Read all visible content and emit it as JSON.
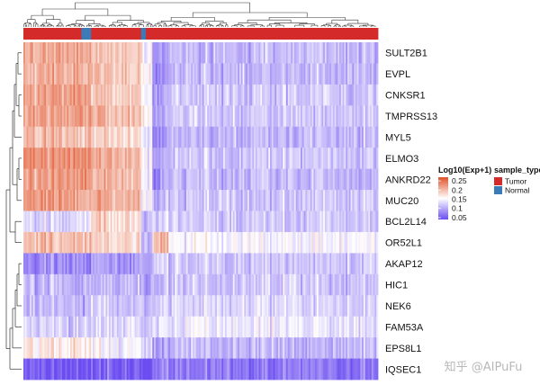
{
  "chart_data": {
    "type": "heatmap",
    "title": "",
    "genes": [
      "SULT2B1",
      "EVPL",
      "CNKSR1",
      "TMPRSS13",
      "MYL5",
      "ELMO3",
      "ANKRD22",
      "MUC20",
      "BCL2L14",
      "OR52L1",
      "AKAP12",
      "HIC1",
      "NEK6",
      "FAM53A",
      "EPS8L1",
      "IQSEC1"
    ],
    "n_samples": 220,
    "color_legend": {
      "title": "Log10(Exp+1)",
      "ticks": [
        "0.25",
        "0.2",
        "0.15",
        "0.1",
        "0.05"
      ],
      "tick_values": [
        0.25,
        0.2,
        0.15,
        0.1,
        0.05
      ],
      "range": [
        0.04,
        0.27
      ],
      "colors": {
        "low": "#6a4cf0",
        "mid": "#ffffff",
        "high": "#e0532a"
      }
    },
    "annotation_legend": {
      "title": "sample_type",
      "entries": [
        {
          "label": "Tumor",
          "color": "#d42a2a"
        },
        {
          "label": "Normal",
          "color": "#3a7bb8"
        }
      ]
    },
    "sample_blocks": [
      {
        "fraction_start": 0.0,
        "fraction_end": 0.165,
        "profile": "high_upper",
        "sample_type": "Tumor"
      },
      {
        "fraction_start": 0.165,
        "fraction_end": 0.19,
        "profile": "high_upper",
        "sample_type": "Normal"
      },
      {
        "fraction_start": 0.19,
        "fraction_end": 0.33,
        "profile": "high_upper_mixed",
        "sample_type": "Tumor"
      },
      {
        "fraction_start": 0.33,
        "fraction_end": 0.345,
        "profile": "mixed",
        "sample_type": "Normal"
      },
      {
        "fraction_start": 0.345,
        "fraction_end": 0.365,
        "profile": "mixed",
        "sample_type": "Tumor"
      },
      {
        "fraction_start": 0.365,
        "fraction_end": 0.41,
        "profile": "low_upper",
        "sample_type": "Tumor"
      },
      {
        "fraction_start": 0.41,
        "fraction_end": 1.0,
        "profile": "low_upper_mixed",
        "sample_type": "Tumor"
      }
    ],
    "row_profiles": {
      "high_upper": [
        0.21,
        0.21,
        0.22,
        0.22,
        0.2,
        0.23,
        0.22,
        0.22,
        0.13,
        0.2,
        0.08,
        0.11,
        0.11,
        0.13,
        0.17,
        0.05
      ],
      "high_upper_mixed": [
        0.19,
        0.19,
        0.19,
        0.2,
        0.18,
        0.21,
        0.2,
        0.21,
        0.18,
        0.18,
        0.09,
        0.11,
        0.12,
        0.13,
        0.15,
        0.05
      ],
      "mixed": [
        0.16,
        0.17,
        0.16,
        0.17,
        0.15,
        0.16,
        0.15,
        0.16,
        0.12,
        0.12,
        0.1,
        0.11,
        0.12,
        0.13,
        0.13,
        0.06
      ],
      "low_upper": [
        0.09,
        0.08,
        0.1,
        0.1,
        0.09,
        0.1,
        0.09,
        0.11,
        0.13,
        0.21,
        0.13,
        0.12,
        0.13,
        0.14,
        0.1,
        0.08
      ],
      "low_upper_mixed": [
        0.11,
        0.11,
        0.12,
        0.12,
        0.11,
        0.12,
        0.11,
        0.12,
        0.12,
        0.15,
        0.12,
        0.12,
        0.13,
        0.14,
        0.11,
        0.07
      ]
    }
  },
  "watermark": "知乎 @AIPuFu"
}
